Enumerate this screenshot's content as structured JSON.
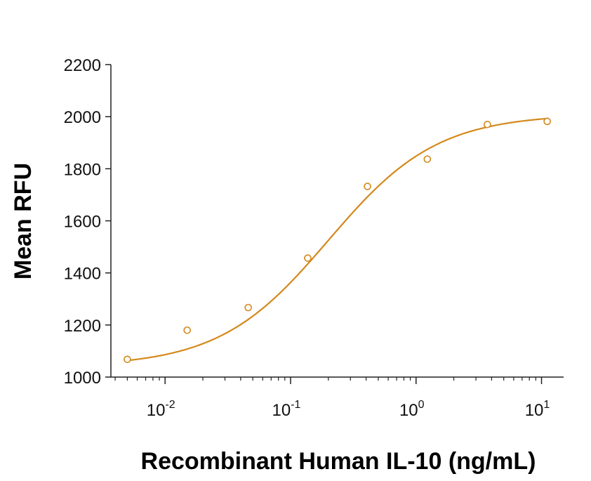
{
  "chart_data": {
    "type": "scatter",
    "title": "",
    "xlabel": "Recombinant Human IL-10 (ng/mL)",
    "ylabel": "Mean RFU",
    "x_scale": "log",
    "xlim": [
      0.0037,
      15
    ],
    "ylim": [
      1000,
      2200
    ],
    "y_ticks": [
      1000,
      1200,
      1400,
      1600,
      1800,
      2000,
      2200
    ],
    "x_ticks": [
      {
        "value": 0.01,
        "base": "10",
        "exponent": "-2"
      },
      {
        "value": 0.1,
        "base": "10",
        "exponent": "-1"
      },
      {
        "value": 1,
        "base": "10",
        "exponent": "0"
      },
      {
        "value": 10,
        "base": "10",
        "exponent": "1"
      }
    ],
    "grid": false,
    "series": [
      {
        "points": [
          {
            "x": 0.005,
            "y": 1068
          },
          {
            "x": 0.015,
            "y": 1180
          },
          {
            "x": 0.046,
            "y": 1267
          },
          {
            "x": 0.137,
            "y": 1457
          },
          {
            "x": 0.41,
            "y": 1732
          },
          {
            "x": 1.23,
            "y": 1837
          },
          {
            "x": 3.7,
            "y": 1970
          },
          {
            "x": 11.1,
            "y": 1982
          }
        ],
        "fit": {
          "model": "4PL",
          "bottom": 1040,
          "top": 2010,
          "ec50": 0.2,
          "hill": 1.0
        }
      }
    ],
    "colors": {
      "series": "#d4881c",
      "axis": "#222222"
    }
  }
}
